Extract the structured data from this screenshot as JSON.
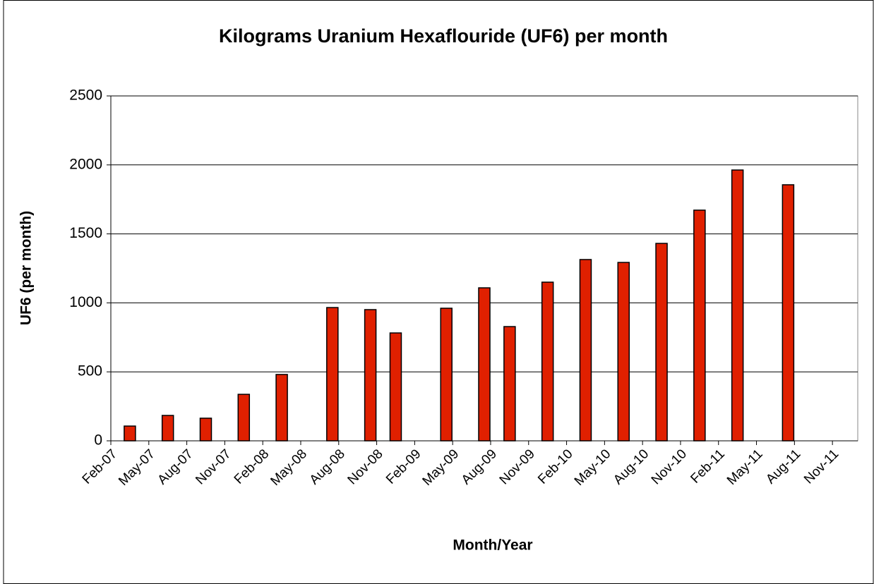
{
  "chart_data": {
    "type": "bar",
    "title": "Kilograms Uranium Hexaflouride (UF6) per month",
    "xlabel": "Month/Year",
    "ylabel": "UF6 (per month)",
    "categories": [
      "Feb-07",
      null,
      null,
      "May-07",
      null,
      null,
      "Aug-07",
      null,
      null,
      "Nov-07",
      null,
      null,
      "Feb-08",
      null,
      null,
      "May-08",
      null,
      null,
      "Aug-08",
      null,
      null,
      "Nov-08",
      null,
      null,
      "Feb-09",
      null,
      null,
      "May-09",
      null,
      null,
      "Aug-09",
      null,
      null,
      "Nov-09",
      null,
      null,
      "Feb-10",
      null,
      null,
      "May-10",
      null,
      null,
      "Aug-10",
      null,
      null,
      "Nov-10",
      null,
      null,
      "Feb-11",
      null,
      null,
      "May-11",
      null,
      null,
      "Aug-11",
      null,
      null,
      "Nov-11",
      null
    ],
    "values": [
      null,
      107,
      null,
      null,
      184,
      null,
      null,
      164,
      null,
      null,
      337,
      null,
      null,
      481,
      null,
      null,
      null,
      966,
      null,
      null,
      951,
      null,
      782,
      null,
      null,
      null,
      961,
      null,
      null,
      1109,
      null,
      828,
      null,
      null,
      1150,
      null,
      null,
      1314,
      null,
      null,
      1293,
      null,
      null,
      1431,
      null,
      null,
      1672,
      null,
      null,
      1963,
      null,
      null,
      null,
      1856,
      null,
      null,
      null,
      null,
      null
    ],
    "color": "#e02000",
    "ylim": [
      0,
      2500
    ],
    "yticks": [
      0,
      500,
      1000,
      1500,
      2000,
      2500
    ],
    "grid": true
  }
}
